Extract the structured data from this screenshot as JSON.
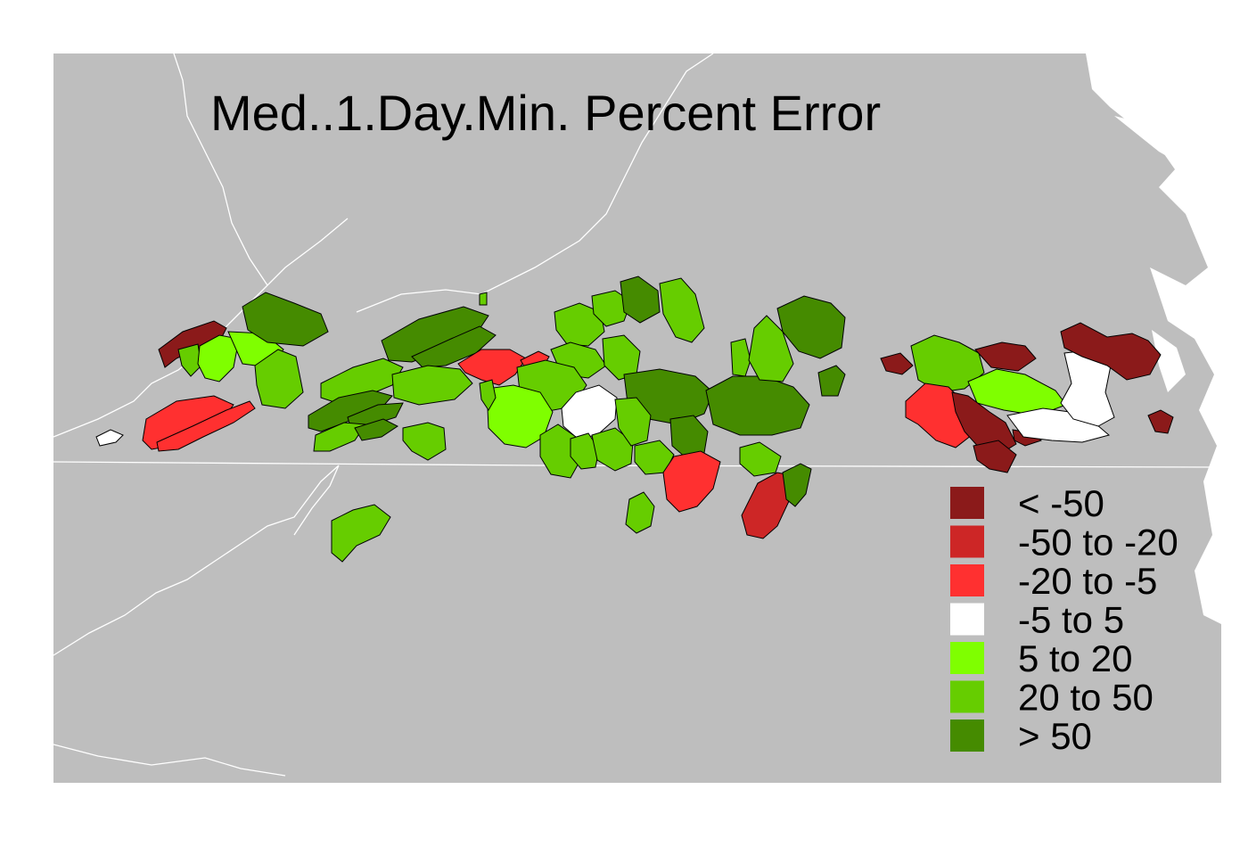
{
  "map": {
    "title": "Med..1.Day.Min. Percent Error",
    "background_color": "#ffffff",
    "land_color": "#bebebe",
    "border_color": "#ffffff",
    "outline_color": "#000000"
  },
  "legend": {
    "items": [
      {
        "label": "< -50",
        "color": "#8b1a1a"
      },
      {
        "label": "-50 to -20",
        "color": "#cd2626"
      },
      {
        "label": "-20 to -5",
        "color": "#ff3030"
      },
      {
        "label": "-5 to 5",
        "color": "#ffffff"
      },
      {
        "label": "5 to 20",
        "color": "#7fff00"
      },
      {
        "label": "20 to 50",
        "color": "#66cd00"
      },
      {
        "label": "> 50",
        "color": "#458b00"
      }
    ]
  }
}
